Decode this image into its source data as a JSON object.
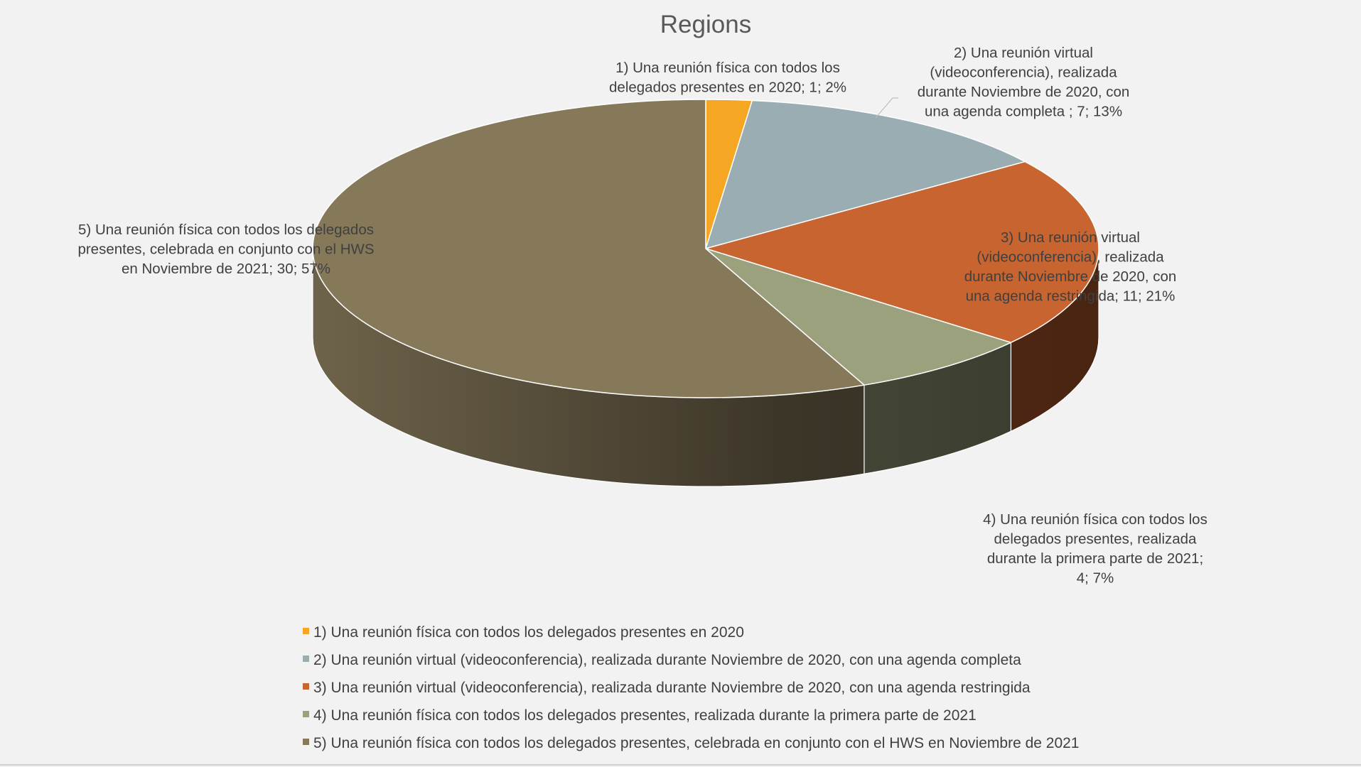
{
  "chart_data": {
    "type": "pie",
    "variant": "3d",
    "title": "Regions",
    "legend_position": "bottom",
    "slices": [
      {
        "name": "1) Una reunión física con todos los delegados presentes en 2020",
        "value": 1,
        "percent": "2%",
        "color": "#f5a623",
        "label_lines": [
          "1) Una reunión física con todos los",
          "delegados presentes en 2020; 1; 2%"
        ]
      },
      {
        "name": "2) Una reunión virtual (videoconferencia), realizada durante Noviembre de 2020, con una agenda completa",
        "value": 7,
        "percent": "13%",
        "color": "#9aadb3",
        "label_lines": [
          "2) Una reunión virtual",
          "(videoconferencia), realizada",
          "durante Noviembre de 2020, con",
          "una agenda completa ; 7; 13%"
        ]
      },
      {
        "name": "3) Una reunión virtual (videoconferencia), realizada durante Noviembre de 2020, con una agenda restringida",
        "value": 11,
        "percent": "21%",
        "color": "#c8642f",
        "label_lines": [
          "3) Una reunión virtual",
          "(videoconferencia), realizada",
          "durante Noviembre de 2020, con",
          "una agenda restringida; 11; 21%"
        ]
      },
      {
        "name": "4) Una reunión física con todos los delegados presentes, realizada durante la primera parte de 2021",
        "value": 4,
        "percent": "7%",
        "color": "#9ba17d",
        "label_lines": [
          "4) Una reunión física con todos los",
          "delegados presentes, realizada",
          "durante la primera parte de 2021;",
          "4; 7%"
        ]
      },
      {
        "name": "5) Una reunión física con todos los delegados presentes, celebrada en conjunto con el HWS en Noviembre de 2021",
        "value": 30,
        "percent": "57%",
        "color": "#86795a",
        "label_lines": [
          "5) Una reunión física con todos los delegados",
          "presentes, celebrada en conjunto con el HWS",
          "en Noviembre de 2021; 30; 57%"
        ]
      }
    ]
  }
}
